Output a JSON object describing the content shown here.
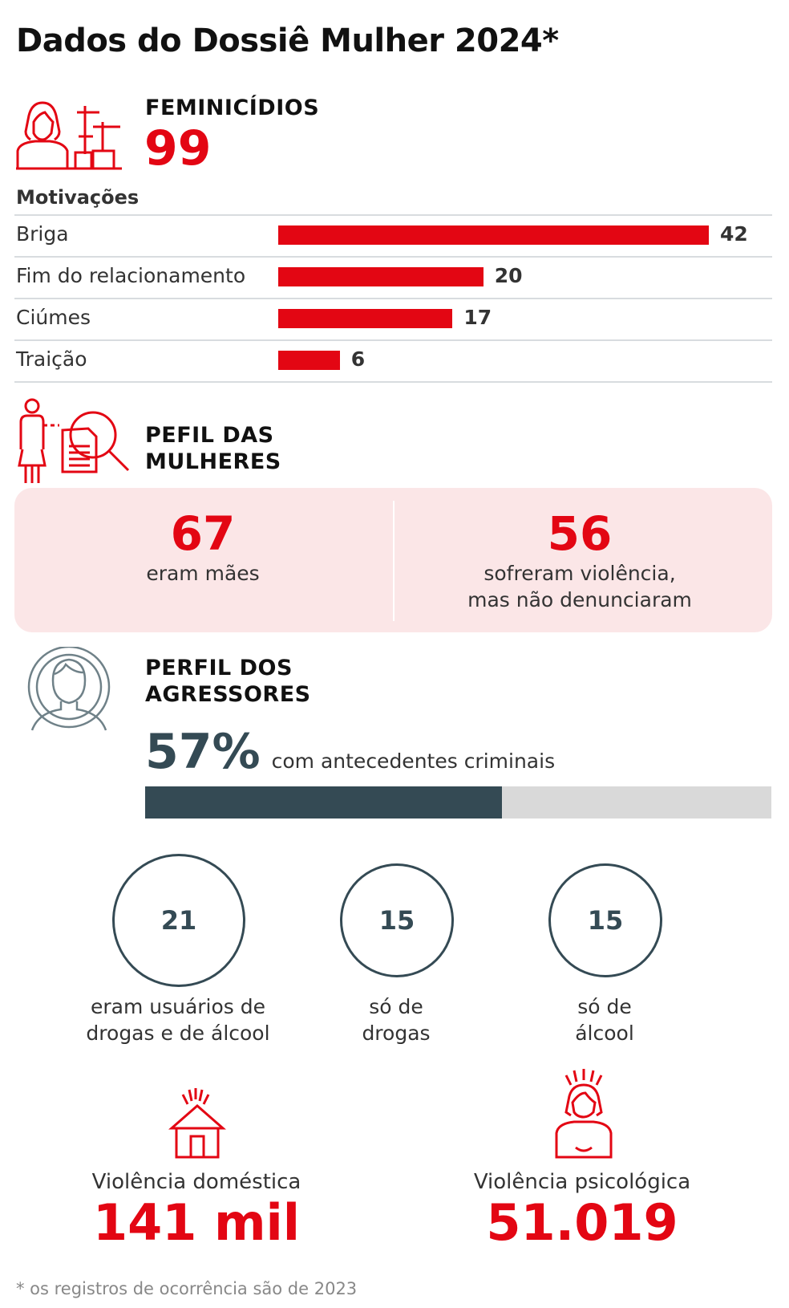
{
  "title": "Dados do Dossiê Mulher 2024*",
  "feminicidios": {
    "label": "FEMINICÍDIOS",
    "value": "99",
    "icon": "woman-graves-icon"
  },
  "chart_data": {
    "type": "bar",
    "title": "Motivações",
    "categories": [
      "Briga",
      "Fim do relacionamento",
      "Ciúmes",
      "Traição"
    ],
    "values": [
      42,
      20,
      17,
      6
    ],
    "orientation": "horizontal",
    "color": "#e30613"
  },
  "perfil_mulheres": {
    "label_line1": "PEFIL DAS",
    "label_line2": "MULHERES",
    "icon": "woman-investigation-icon",
    "stats": [
      {
        "value": "67",
        "text_line1": "eram mães",
        "text_line2": ""
      },
      {
        "value": "56",
        "text_line1": "sofreram violência,",
        "text_line2": "mas não denunciaram"
      }
    ]
  },
  "perfil_agressores": {
    "label_line1": "PERFIL DOS",
    "label_line2": "AGRESSORES",
    "icon": "man-avatar-icon",
    "percent_label": "57%",
    "percent_text": "com antecedentes  criminais",
    "percent_value": 57,
    "circles": [
      {
        "value": "21",
        "line1": "eram usuários de",
        "line2": "drogas e de álcool"
      },
      {
        "value": "15",
        "line1": "só de",
        "line2": "drogas"
      },
      {
        "value": "15",
        "line1": "só de",
        "line2": "álcool"
      }
    ]
  },
  "violencia": [
    {
      "label": "Violência doméstica",
      "value": "141 mil",
      "icon": "house-alert-icon"
    },
    {
      "label": "Violência psicológica",
      "value": "51.019",
      "icon": "woman-alert-icon"
    }
  ],
  "footnote": "* os registros de ocorrência são de 2023",
  "colors": {
    "accent": "#e30613",
    "dark": "#344a54",
    "pink_bg": "#fbe6e7",
    "track": "#d9d9d9"
  }
}
